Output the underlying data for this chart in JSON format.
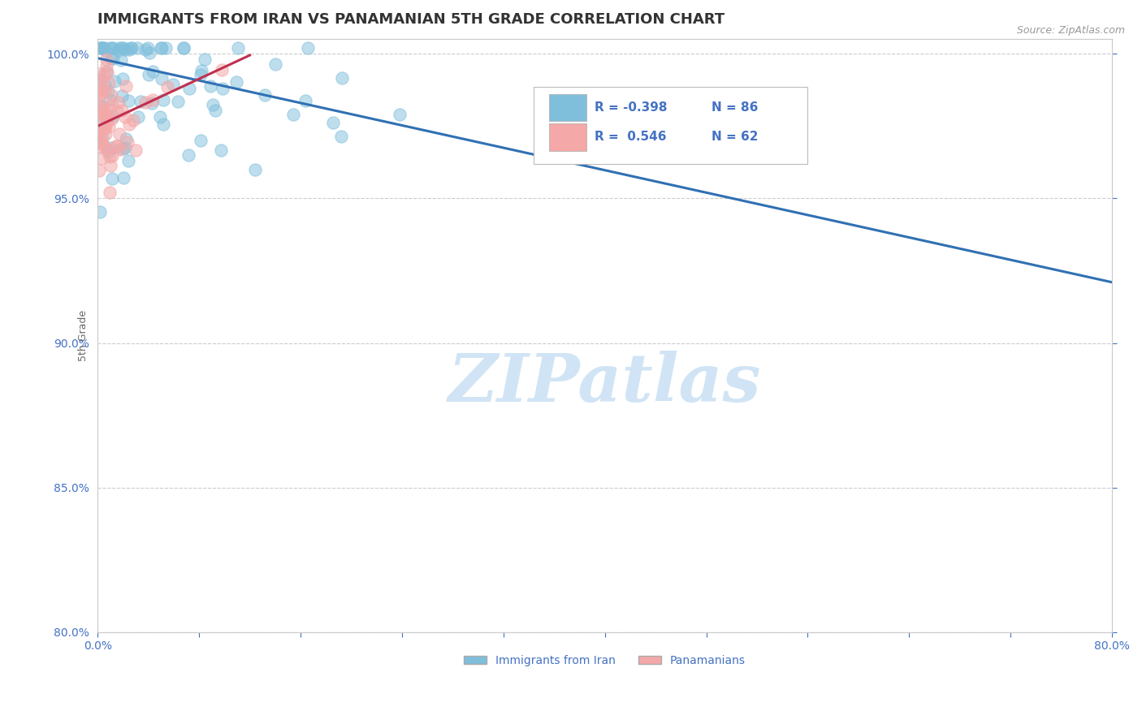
{
  "title": "IMMIGRANTS FROM IRAN VS PANAMANIAN 5TH GRADE CORRELATION CHART",
  "source_text": "Source: ZipAtlas.com",
  "ylabel": "5th Grade",
  "xlim": [
    0.0,
    0.8
  ],
  "ylim": [
    0.8,
    1.005
  ],
  "xticks": [
    0.0,
    0.08,
    0.16,
    0.24,
    0.32,
    0.4,
    0.48,
    0.56,
    0.64,
    0.72,
    0.8
  ],
  "ytick_positions": [
    0.8,
    0.85,
    0.9,
    0.95,
    1.0
  ],
  "ytick_labels": [
    "80.0%",
    "85.0%",
    "90.0%",
    "95.0%",
    "100.0%"
  ],
  "blue_R": -0.398,
  "blue_N": 86,
  "pink_R": 0.546,
  "pink_N": 62,
  "blue_color": "#7fbfdc",
  "pink_color": "#f4a8a8",
  "blue_line_color": "#3070b3",
  "pink_line_color": "#c03050",
  "watermark": "ZIPatlas",
  "legend_label_blue": "Immigrants from Iran",
  "legend_label_pink": "Panamanians",
  "blue_trend_x": [
    0.0,
    0.8
  ],
  "blue_trend_y": [
    0.9985,
    0.921
  ],
  "pink_trend_x": [
    0.0,
    0.12
  ],
  "pink_trend_y": [
    0.975,
    0.9995
  ],
  "title_fontsize": 13,
  "axis_label_fontsize": 9,
  "tick_fontsize": 10,
  "background_color": "#ffffff",
  "grid_color": "#cccccc",
  "title_color": "#333333",
  "axis_color": "#4472c4",
  "watermark_color": "#d0e4f5"
}
